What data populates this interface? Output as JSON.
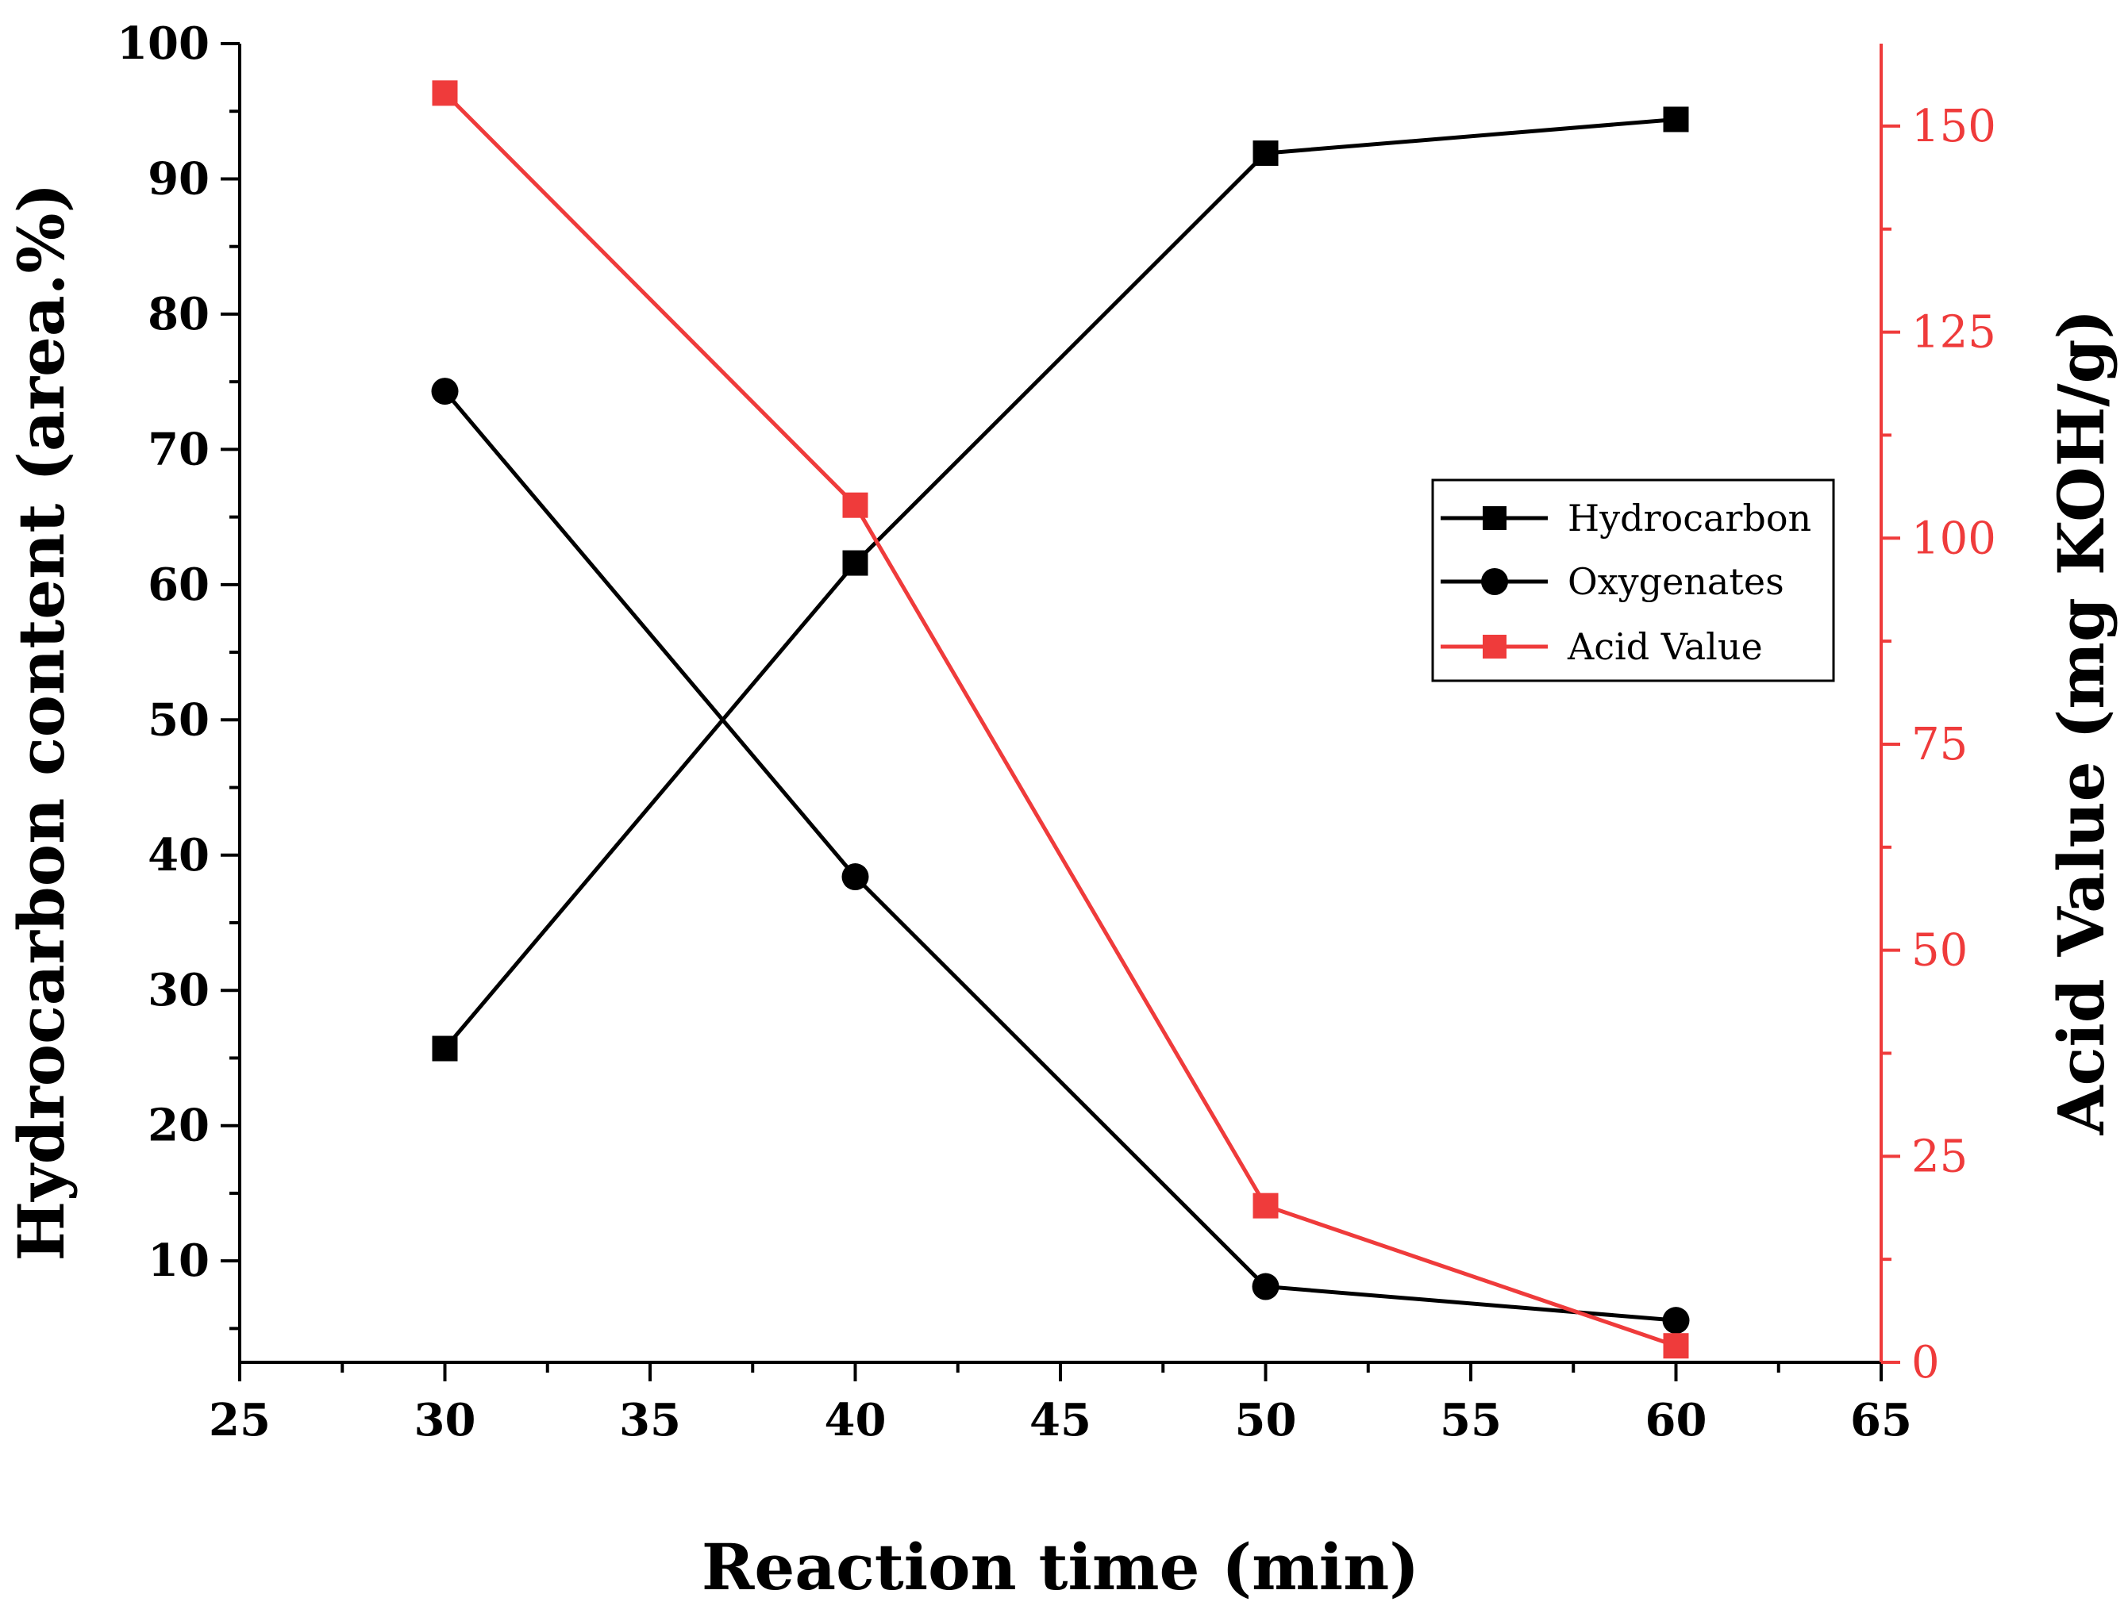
{
  "chart_data": {
    "type": "line",
    "title": "",
    "xlabel": "Reaction time (min)",
    "ylabel_left": "Hydrocarbon content (area.%)",
    "ylabel_right": "Acid Value (mg KOH/g)",
    "xlim": [
      25,
      65
    ],
    "ylim_left": [
      2.5,
      100
    ],
    "ylim_right": [
      0,
      160
    ],
    "x_ticks": [
      "25",
      "30",
      "35",
      "40",
      "45",
      "50",
      "55",
      "60",
      "65"
    ],
    "y_left_ticks": [
      "10",
      "20",
      "30",
      "40",
      "50",
      "60",
      "70",
      "80",
      "90",
      "100"
    ],
    "y_right_ticks": [
      "0",
      "25",
      "50",
      "75",
      "100",
      "125",
      "150"
    ],
    "x": [
      30,
      40,
      50,
      60
    ],
    "series": [
      {
        "name": "Hydrocarbon",
        "axis": "left",
        "marker": "square",
        "color": "#000000",
        "values": [
          25.7,
          61.6,
          91.9,
          94.4
        ]
      },
      {
        "name": "Oxygenates",
        "axis": "left",
        "marker": "circle",
        "color": "#000000",
        "values": [
          74.3,
          38.4,
          8.1,
          5.6
        ]
      },
      {
        "name": "Acid Value",
        "axis": "right",
        "marker": "square",
        "color": "#ef3b3b",
        "values": [
          154,
          104,
          19,
          2
        ]
      }
    ],
    "legend_position": "upper-right",
    "grid": false
  }
}
